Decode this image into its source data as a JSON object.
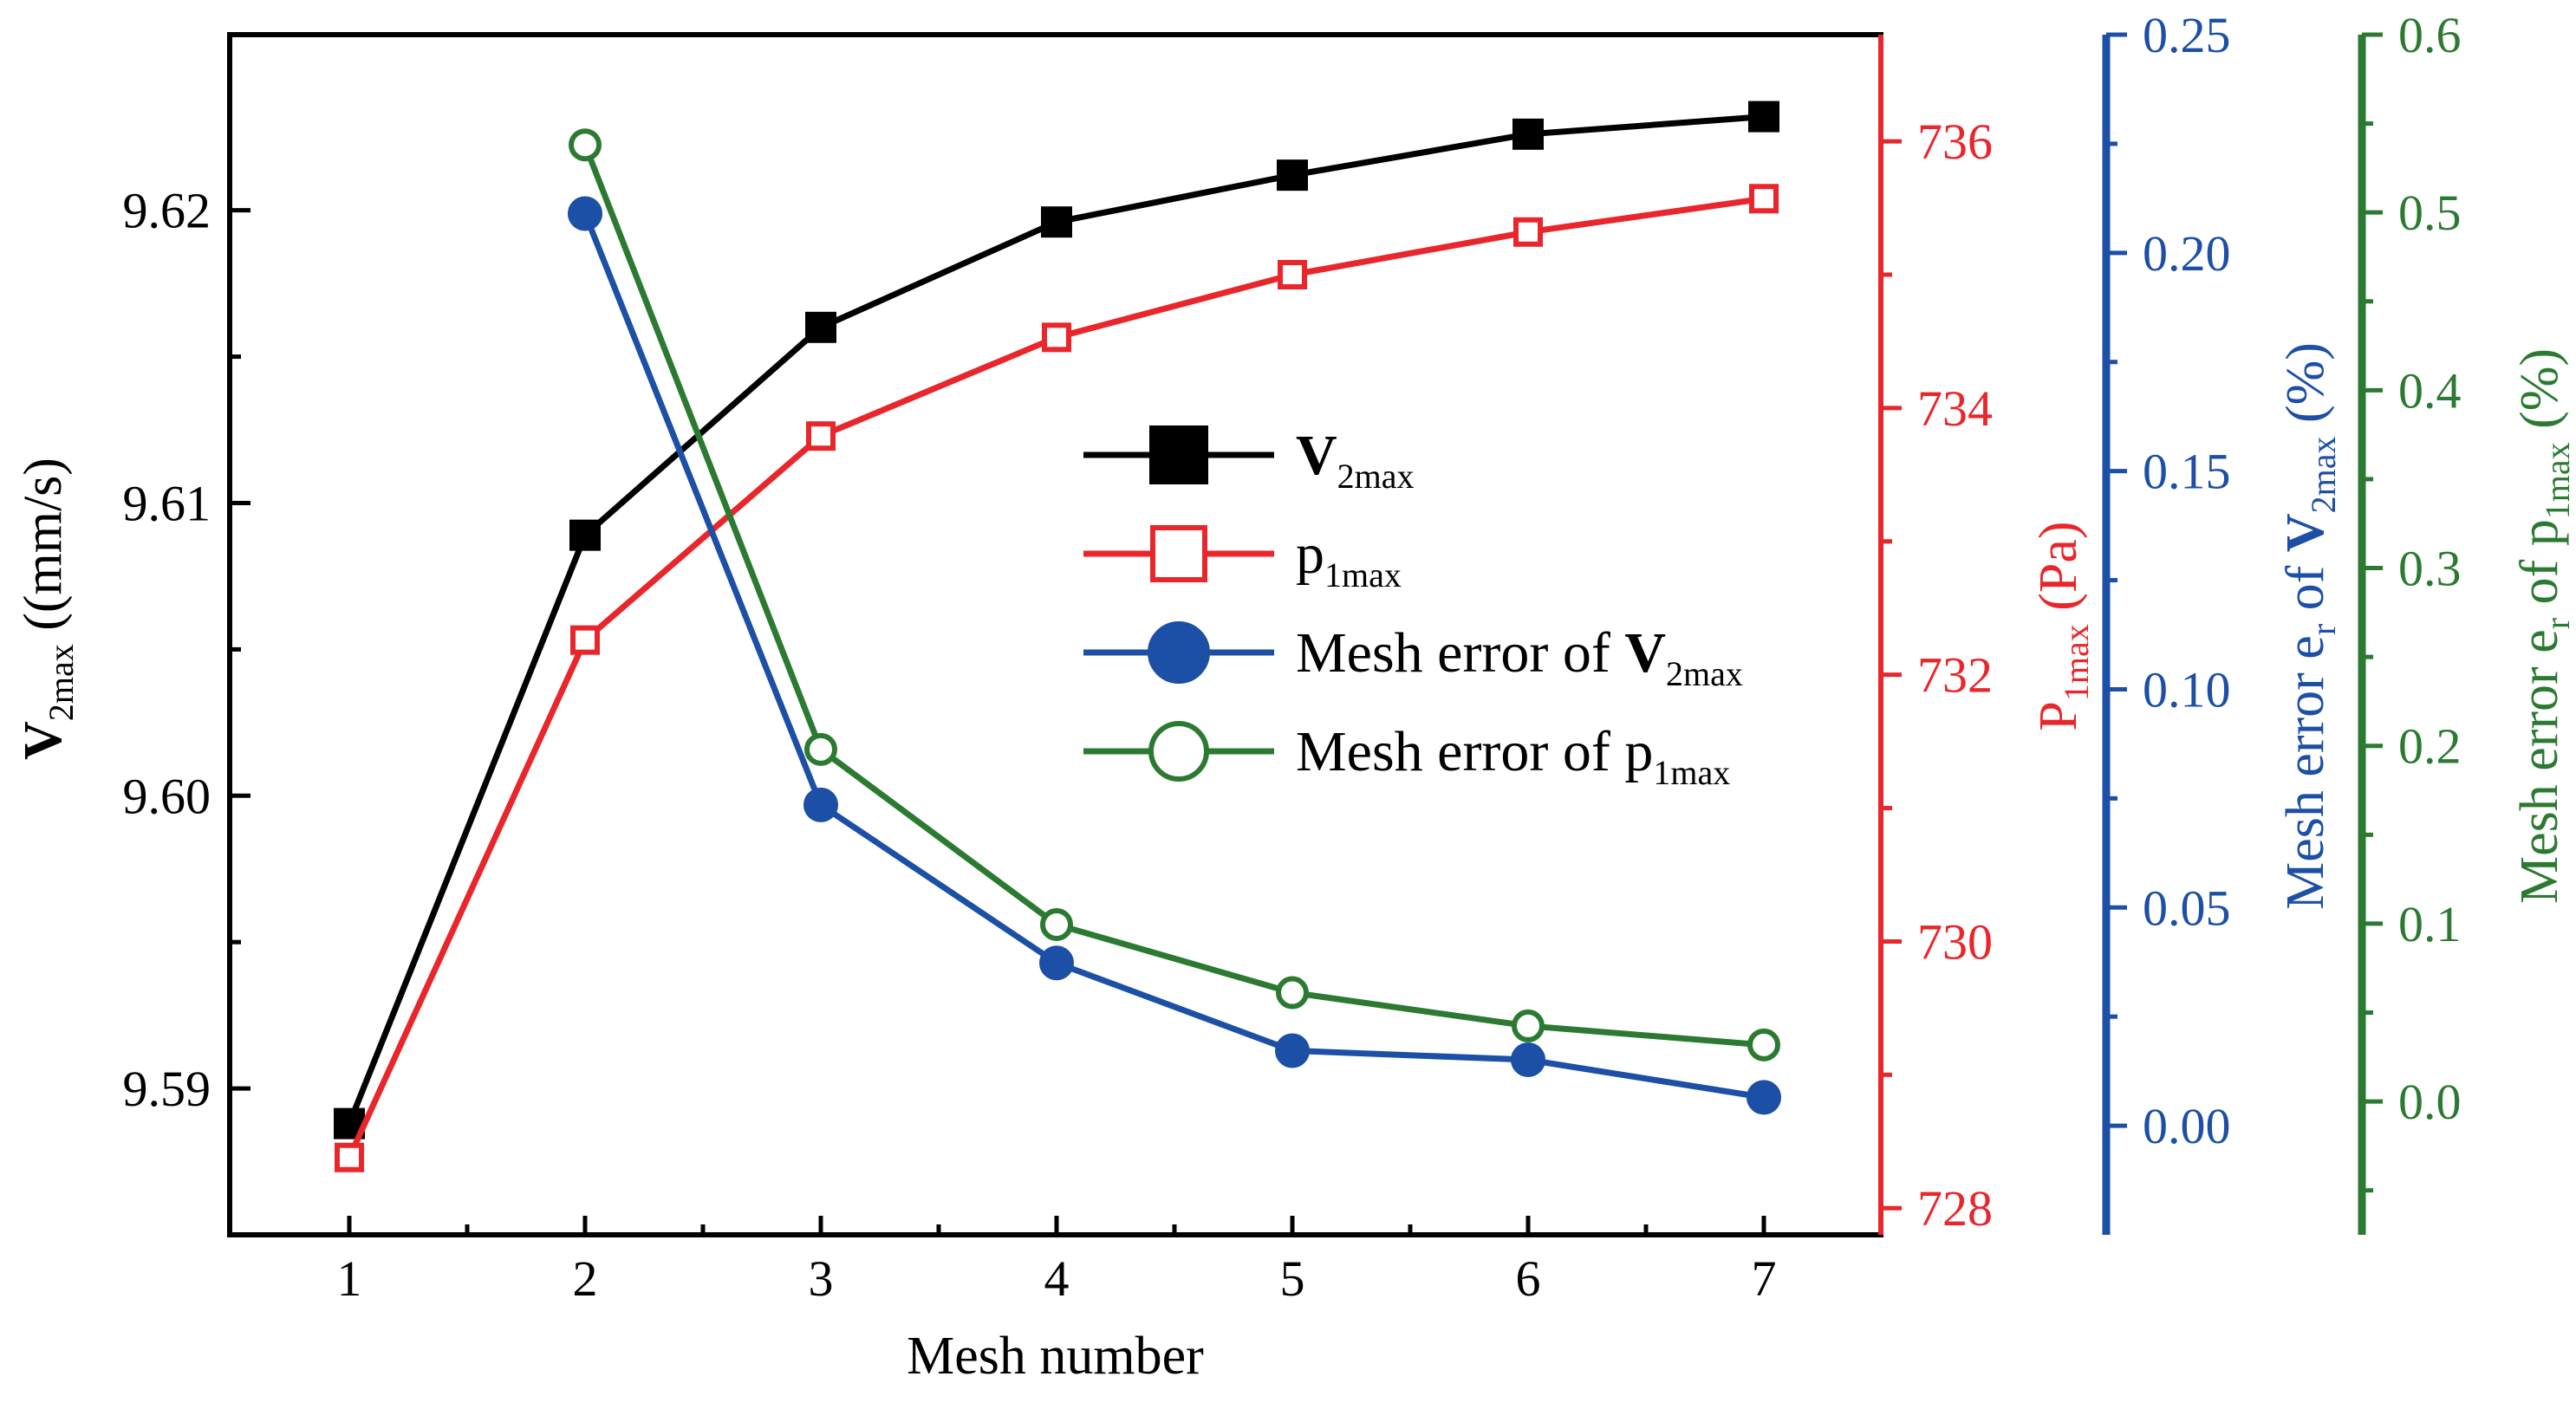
{
  "chart_data": {
    "type": "line",
    "categories": [
      1,
      2,
      3,
      4,
      5,
      6,
      7
    ],
    "xlabel": "Mesh number",
    "axes": {
      "y1": {
        "color": "#000000",
        "min": 9.585,
        "max": 9.626,
        "ticks": [
          9.59,
          9.6,
          9.61,
          9.62
        ],
        "tick_labels": [
          "9.59",
          "9.60",
          "9.61",
          "9.62"
        ],
        "label_main": "V",
        "label_sub": "2max",
        "label_tail": " ((mm/s)"
      },
      "y2": {
        "color": "#e8262b",
        "min": 727.8,
        "max": 736.8,
        "ticks": [
          728,
          730,
          732,
          734,
          736
        ],
        "tick_labels": [
          "728",
          "730",
          "732",
          "734",
          "736"
        ],
        "label_main": "P",
        "label_sub": "1max",
        "label_tail": " (Pa)"
      },
      "y3": {
        "color": "#1c4fa6",
        "min": -0.025,
        "max": 0.25,
        "ticks": [
          0.0,
          0.05,
          0.1,
          0.15,
          0.2,
          0.25
        ],
        "tick_labels": [
          "0.00",
          "0.05",
          "0.10",
          "0.15",
          "0.20",
          "0.25"
        ],
        "label_head": "Mesh error e",
        "label_head_sub": "r",
        "label_mid": " of ",
        "label_main": "V",
        "label_sub": "2max",
        "label_tail": " (%)"
      },
      "y4": {
        "color": "#2c7a32",
        "min": -0.075,
        "max": 0.6,
        "ticks": [
          0.0,
          0.1,
          0.2,
          0.3,
          0.4,
          0.5,
          0.6
        ],
        "tick_labels": [
          "0.0",
          "0.1",
          "0.2",
          "0.3",
          "0.4",
          "0.5",
          "0.6"
        ],
        "label_head": "Mesh error e",
        "label_head_sub": "r",
        "label_mid": " of ",
        "label_main": "p",
        "label_sub": "1max",
        "label_tail": " (%)"
      }
    },
    "series": [
      {
        "name": "V2max",
        "axis": "y1",
        "color": "#000000",
        "marker": "filled-square",
        "x": [
          1,
          2,
          3,
          4,
          5,
          6,
          7
        ],
        "values": [
          9.5888,
          9.6089,
          9.616,
          9.6196,
          9.6212,
          9.6226,
          9.6232
        ]
      },
      {
        "name": "p1max",
        "axis": "y2",
        "color": "#e8262b",
        "marker": "open-square",
        "x": [
          1,
          2,
          3,
          4,
          5,
          6,
          7
        ],
        "values": [
          728.38,
          732.26,
          733.79,
          734.53,
          735.0,
          735.32,
          735.57
        ]
      },
      {
        "name": "Mesh error of V2max",
        "axis": "y3",
        "color": "#1c4fa6",
        "marker": "filled-circle",
        "x": [
          2,
          3,
          4,
          5,
          6,
          7
        ],
        "values": [
          0.209,
          0.0735,
          0.0373,
          0.0172,
          0.0151,
          0.0065
        ]
      },
      {
        "name": "Mesh error of p1max",
        "axis": "y4",
        "color": "#2c7a32",
        "marker": "open-circle",
        "x": [
          2,
          3,
          4,
          5,
          6,
          7
        ],
        "values": [
          0.538,
          0.198,
          0.0995,
          0.0612,
          0.0425,
          0.0318
        ]
      }
    ],
    "legend": {
      "position": "center",
      "items": [
        {
          "main": "V",
          "sub": "2max",
          "prefix": "",
          "bold_main": true
        },
        {
          "main": "p",
          "sub": "1max",
          "prefix": "",
          "bold_main": false
        },
        {
          "main": "V",
          "sub": "2max",
          "prefix": "Mesh error of ",
          "bold_main": true
        },
        {
          "main": "p",
          "sub": "1max",
          "prefix": "Mesh error of ",
          "bold_main": false
        }
      ]
    }
  }
}
